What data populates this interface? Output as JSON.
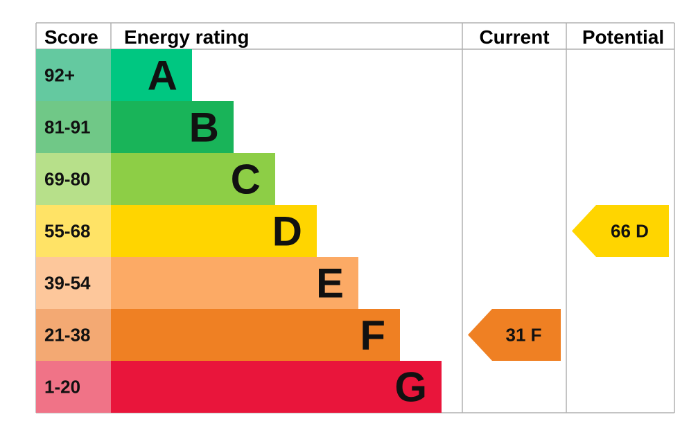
{
  "chart_data": {
    "type": "table",
    "headers": {
      "score": "Score",
      "rating": "Energy rating",
      "current": "Current",
      "potential": "Potential"
    },
    "bands": [
      {
        "letter": "A",
        "score": "92+",
        "band_color": "#00c781",
        "score_color": "#64c9a0"
      },
      {
        "letter": "B",
        "score": "81-91",
        "band_color": "#19b459",
        "score_color": "#70c887"
      },
      {
        "letter": "C",
        "score": "69-80",
        "band_color": "#8dce46",
        "score_color": "#b7e08a"
      },
      {
        "letter": "D",
        "score": "55-68",
        "band_color": "#ffd500",
        "score_color": "#ffe366"
      },
      {
        "letter": "E",
        "score": "39-54",
        "band_color": "#fcaa65",
        "score_color": "#fdc79b"
      },
      {
        "letter": "F",
        "score": "21-38",
        "band_color": "#ef8023",
        "score_color": "#f3a973"
      },
      {
        "letter": "G",
        "score": "1-20",
        "band_color": "#e9153b",
        "score_color": "#f07387"
      }
    ],
    "current": {
      "value": 31,
      "letter": "F",
      "color": "#ef8023"
    },
    "potential": {
      "value": 66,
      "letter": "D",
      "color": "#ffd500"
    }
  }
}
